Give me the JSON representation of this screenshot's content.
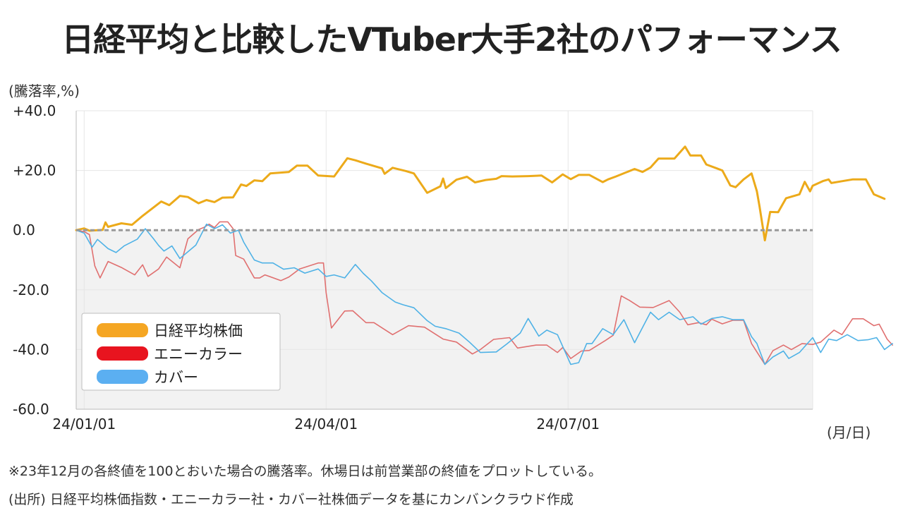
{
  "title": "日経平均と比較したVTuber大手2社のパフォーマンス",
  "y_unit": "(騰落率,%)",
  "x_unit": "(月/日)",
  "footnote": "※23年12月の各終値を100とおいた場合の騰落率。休場日は前営業部の終値をプロットしている。",
  "source": "(出所) 日経平均株価指数・エニーカラー社・カバー社株価データを基にカンバンクラウド作成",
  "chart_data": {
    "type": "line",
    "ylim": [
      -60,
      40
    ],
    "y_ticks": [
      {
        "value": 40,
        "label": "+40.0"
      },
      {
        "value": 20,
        "label": "+20.0"
      },
      {
        "value": 0,
        "label": "0.0"
      },
      {
        "value": -20,
        "label": "-20.0"
      },
      {
        "value": -40,
        "label": "-40.0"
      },
      {
        "value": -60,
        "label": "-60.0"
      }
    ],
    "x_ticks": [
      {
        "value": "2024-01-01",
        "label": "24/01/01"
      },
      {
        "value": "2024-04-01",
        "label": "24/04/01"
      },
      {
        "value": "2024-07-01",
        "label": "24/07/01"
      }
    ],
    "x_start": "2023-12-29",
    "x_end": "2024-10-01",
    "grid": true,
    "negative_region_shaded": true,
    "zero_line_dashed": true,
    "legend_position": "bottom-left",
    "series": [
      {
        "name": "日経平均株価",
        "color": "#ecaa1a",
        "legend_color": "#f5a623",
        "points": [
          [
            "2023-12-29",
            0.0
          ],
          [
            "2024-01-01",
            0.6
          ],
          [
            "2024-01-03",
            -0.2
          ],
          [
            "2024-01-08",
            0.1
          ],
          [
            "2024-01-09",
            2.6
          ],
          [
            "2024-01-10",
            1.1
          ],
          [
            "2024-01-15",
            2.3
          ],
          [
            "2024-01-19",
            1.8
          ],
          [
            "2024-01-23",
            4.8
          ],
          [
            "2024-01-30",
            9.6
          ],
          [
            "2024-02-02",
            8.4
          ],
          [
            "2024-02-06",
            11.5
          ],
          [
            "2024-02-09",
            11.1
          ],
          [
            "2024-02-13",
            9.0
          ],
          [
            "2024-02-16",
            10.1
          ],
          [
            "2024-02-19",
            9.4
          ],
          [
            "2024-02-22",
            10.9
          ],
          [
            "2024-02-26",
            11.0
          ],
          [
            "2024-02-29",
            15.3
          ],
          [
            "2024-03-02",
            14.8
          ],
          [
            "2024-03-05",
            16.7
          ],
          [
            "2024-03-08",
            16.4
          ],
          [
            "2024-03-11",
            19.0
          ],
          [
            "2024-03-15",
            19.3
          ],
          [
            "2024-03-18",
            19.5
          ],
          [
            "2024-03-21",
            21.6
          ],
          [
            "2024-03-25",
            21.6
          ],
          [
            "2024-03-29",
            18.3
          ],
          [
            "2024-04-04",
            18.0
          ],
          [
            "2024-04-09",
            24.1
          ],
          [
            "2024-04-12",
            23.4
          ],
          [
            "2024-04-16",
            22.3
          ],
          [
            "2024-04-22",
            20.7
          ],
          [
            "2024-04-23",
            18.9
          ],
          [
            "2024-04-26",
            20.9
          ],
          [
            "2024-05-01",
            19.8
          ],
          [
            "2024-05-04",
            19.0
          ],
          [
            "2024-05-09",
            12.5
          ],
          [
            "2024-05-14",
            14.7
          ],
          [
            "2024-05-15",
            17.3
          ],
          [
            "2024-05-16",
            14.1
          ],
          [
            "2024-05-20",
            16.9
          ],
          [
            "2024-05-24",
            17.9
          ],
          [
            "2024-05-27",
            16.0
          ],
          [
            "2024-05-31",
            16.8
          ],
          [
            "2024-06-04",
            17.2
          ],
          [
            "2024-06-06",
            18.1
          ],
          [
            "2024-06-10",
            18.0
          ],
          [
            "2024-06-16",
            18.1
          ],
          [
            "2024-06-21",
            18.3
          ],
          [
            "2024-06-25",
            16.0
          ],
          [
            "2024-06-29",
            18.7
          ],
          [
            "2024-07-02",
            17.1
          ],
          [
            "2024-07-05",
            18.5
          ],
          [
            "2024-07-09",
            18.5
          ],
          [
            "2024-07-14",
            16.1
          ],
          [
            "2024-07-16",
            17.0
          ],
          [
            "2024-07-19",
            18.0
          ],
          [
            "2024-07-26",
            20.5
          ],
          [
            "2024-07-29",
            19.5
          ],
          [
            "2024-08-01",
            21.0
          ],
          [
            "2024-08-04",
            24.0
          ],
          [
            "2024-08-10",
            24.0
          ],
          [
            "2024-08-14",
            28.0
          ],
          [
            "2024-08-16",
            25.0
          ],
          [
            "2024-08-20",
            25.0
          ],
          [
            "2024-08-22",
            22.0
          ],
          [
            "2024-08-28",
            20.0
          ],
          [
            "2024-08-31",
            15.0
          ],
          [
            "2024-09-02",
            14.4
          ],
          [
            "2024-09-05",
            17.0
          ],
          [
            "2024-09-08",
            19.0
          ],
          [
            "2024-09-10",
            13.0
          ],
          [
            "2024-09-11",
            8.0
          ],
          [
            "2024-09-13",
            -3.4
          ],
          [
            "2024-09-15",
            6.1
          ],
          [
            "2024-09-18",
            6.0
          ],
          [
            "2024-09-21",
            10.7
          ],
          [
            "2024-09-26",
            12.0
          ],
          [
            "2024-09-28",
            16.2
          ],
          [
            "2024-09-30",
            13.0
          ],
          [
            "2024-10-01",
            14.9
          ],
          [
            "2024-10-05",
            16.5
          ],
          [
            "2024-10-07",
            17.0
          ],
          [
            "2024-10-08",
            15.8
          ],
          [
            "2024-10-12",
            16.4
          ],
          [
            "2024-10-16",
            17.0
          ],
          [
            "2024-10-21",
            17.0
          ],
          [
            "2024-10-24",
            12.0
          ],
          [
            "2024-10-28",
            10.5
          ]
        ]
      },
      {
        "name": "エニーカラー",
        "color": "#e07070",
        "legend_color": "#e8141f",
        "points": [
          [
            "2023-12-29",
            0.0
          ],
          [
            "2024-01-01",
            -0.5
          ],
          [
            "2024-01-03",
            -1.5
          ],
          [
            "2024-01-05",
            -12.0
          ],
          [
            "2024-01-07",
            -16.0
          ],
          [
            "2024-01-10",
            -10.5
          ],
          [
            "2024-01-15",
            -12.5
          ],
          [
            "2024-01-20",
            -15.0
          ],
          [
            "2024-01-23",
            -11.6
          ],
          [
            "2024-01-25",
            -15.5
          ],
          [
            "2024-01-29",
            -13.0
          ],
          [
            "2024-02-01",
            -9.0
          ],
          [
            "2024-02-06",
            -12.6
          ],
          [
            "2024-02-09",
            -2.9
          ],
          [
            "2024-02-13",
            0.2
          ],
          [
            "2024-02-15",
            0.9
          ],
          [
            "2024-02-17",
            2.0
          ],
          [
            "2024-02-19",
            0.9
          ],
          [
            "2024-02-21",
            2.8
          ],
          [
            "2024-02-24",
            2.8
          ],
          [
            "2024-02-26",
            0.5
          ],
          [
            "2024-02-27",
            -8.5
          ],
          [
            "2024-03-01",
            -9.7
          ],
          [
            "2024-03-05",
            -16.0
          ],
          [
            "2024-03-07",
            -16.0
          ],
          [
            "2024-03-09",
            -15.0
          ],
          [
            "2024-03-15",
            -16.9
          ],
          [
            "2024-03-18",
            -15.7
          ],
          [
            "2024-03-22",
            -13.0
          ],
          [
            "2024-03-29",
            -11.0
          ],
          [
            "2024-03-31",
            -11.0
          ],
          [
            "2024-04-01",
            -21.0
          ],
          [
            "2024-04-03",
            -32.8
          ],
          [
            "2024-04-08",
            -27.1
          ],
          [
            "2024-04-11",
            -27.0
          ],
          [
            "2024-04-16",
            -31.0
          ],
          [
            "2024-04-19",
            -31.0
          ],
          [
            "2024-04-26",
            -35.0
          ],
          [
            "2024-05-02",
            -32.0
          ],
          [
            "2024-05-08",
            -32.5
          ],
          [
            "2024-05-15",
            -36.5
          ],
          [
            "2024-05-20",
            -37.5
          ],
          [
            "2024-05-26",
            -41.5
          ],
          [
            "2024-05-29",
            -40.0
          ],
          [
            "2024-06-03",
            -36.6
          ],
          [
            "2024-06-09",
            -36.0
          ],
          [
            "2024-06-12",
            -39.5
          ],
          [
            "2024-06-19",
            -38.5
          ],
          [
            "2024-06-23",
            -38.5
          ],
          [
            "2024-06-27",
            -41.0
          ],
          [
            "2024-06-29",
            -39.3
          ],
          [
            "2024-07-02",
            -43.0
          ],
          [
            "2024-07-06",
            -40.5
          ],
          [
            "2024-07-09",
            -40.3
          ],
          [
            "2024-07-15",
            -37.0
          ],
          [
            "2024-07-18",
            -35.2
          ],
          [
            "2024-07-21",
            -22.0
          ],
          [
            "2024-07-24",
            -23.5
          ],
          [
            "2024-07-28",
            -25.8
          ],
          [
            "2024-08-02",
            -25.9
          ],
          [
            "2024-08-08",
            -23.6
          ],
          [
            "2024-08-12",
            -27.5
          ],
          [
            "2024-08-15",
            -31.7
          ],
          [
            "2024-08-19",
            -31.0
          ],
          [
            "2024-08-22",
            -31.7
          ],
          [
            "2024-08-24",
            -29.8
          ],
          [
            "2024-08-28",
            -31.4
          ],
          [
            "2024-09-01",
            -30.2
          ],
          [
            "2024-09-05",
            -30.2
          ],
          [
            "2024-09-08",
            -38.0
          ],
          [
            "2024-09-13",
            -45.0
          ],
          [
            "2024-09-16",
            -40.4
          ],
          [
            "2024-09-20",
            -38.5
          ],
          [
            "2024-09-23",
            -40.0
          ],
          [
            "2024-09-27",
            -38.0
          ],
          [
            "2024-10-01",
            -38.3
          ],
          [
            "2024-10-04",
            -37.5
          ],
          [
            "2024-10-09",
            -33.5
          ],
          [
            "2024-10-12",
            -35.0
          ],
          [
            "2024-10-16",
            -29.7
          ],
          [
            "2024-10-20",
            -29.7
          ],
          [
            "2024-10-24",
            -32.0
          ],
          [
            "2024-10-26",
            -31.5
          ],
          [
            "2024-10-29",
            -36.5
          ],
          [
            "2024-10-31",
            -38.5
          ]
        ]
      },
      {
        "name": "カバー",
        "color": "#4fb2e6",
        "legend_color": "#5baff1",
        "points": [
          [
            "2023-12-29",
            0.0
          ],
          [
            "2024-01-01",
            -1.0
          ],
          [
            "2024-01-04",
            -5.7
          ],
          [
            "2024-01-06",
            -3.1
          ],
          [
            "2024-01-10",
            -6.2
          ],
          [
            "2024-01-13",
            -7.5
          ],
          [
            "2024-01-16",
            -5.3
          ],
          [
            "2024-01-21",
            -3.0
          ],
          [
            "2024-01-24",
            0.5
          ],
          [
            "2024-01-27",
            -2.8
          ],
          [
            "2024-01-29",
            -5.1
          ],
          [
            "2024-01-31",
            -7.0
          ],
          [
            "2024-02-03",
            -5.3
          ],
          [
            "2024-02-06",
            -9.5
          ],
          [
            "2024-02-12",
            -5.0
          ],
          [
            "2024-02-16",
            2.0
          ],
          [
            "2024-02-19",
            0.5
          ],
          [
            "2024-02-22",
            1.8
          ],
          [
            "2024-02-25",
            -1.0
          ],
          [
            "2024-02-28",
            0.0
          ],
          [
            "2024-03-01",
            -4.0
          ],
          [
            "2024-03-05",
            -10.0
          ],
          [
            "2024-03-08",
            -11.0
          ],
          [
            "2024-03-12",
            -11.0
          ],
          [
            "2024-03-16",
            -13.1
          ],
          [
            "2024-03-20",
            -12.6
          ],
          [
            "2024-03-24",
            -14.4
          ],
          [
            "2024-03-29",
            -13.0
          ],
          [
            "2024-04-01",
            -15.5
          ],
          [
            "2024-04-04",
            -15.0
          ],
          [
            "2024-04-08",
            -16.0
          ],
          [
            "2024-04-12",
            -11.5
          ],
          [
            "2024-04-15",
            -14.5
          ],
          [
            "2024-04-18",
            -17.0
          ],
          [
            "2024-04-22",
            -20.9
          ],
          [
            "2024-04-27",
            -24.1
          ],
          [
            "2024-04-30",
            -25.0
          ],
          [
            "2024-05-04",
            -26.0
          ],
          [
            "2024-05-09",
            -30.3
          ],
          [
            "2024-05-12",
            -32.2
          ],
          [
            "2024-05-16",
            -33.0
          ],
          [
            "2024-05-21",
            -34.5
          ],
          [
            "2024-05-25",
            -37.6
          ],
          [
            "2024-05-29",
            -41.0
          ],
          [
            "2024-06-04",
            -40.8
          ],
          [
            "2024-06-08",
            -38.1
          ],
          [
            "2024-06-13",
            -34.5
          ],
          [
            "2024-06-16",
            -29.6
          ],
          [
            "2024-06-20",
            -35.5
          ],
          [
            "2024-06-23",
            -33.5
          ],
          [
            "2024-06-27",
            -35.0
          ],
          [
            "2024-07-02",
            -45.0
          ],
          [
            "2024-07-05",
            -44.4
          ],
          [
            "2024-07-08",
            -38.0
          ],
          [
            "2024-07-10",
            -38.0
          ],
          [
            "2024-07-14",
            -33.0
          ],
          [
            "2024-07-18",
            -35.0
          ],
          [
            "2024-07-22",
            -30.0
          ],
          [
            "2024-07-26",
            -37.7
          ],
          [
            "2024-08-01",
            -27.5
          ],
          [
            "2024-08-04",
            -30.0
          ],
          [
            "2024-08-08",
            -27.5
          ],
          [
            "2024-08-12",
            -30.0
          ],
          [
            "2024-08-17",
            -29.0
          ],
          [
            "2024-08-20",
            -31.5
          ],
          [
            "2024-08-24",
            -29.6
          ],
          [
            "2024-08-28",
            -29.0
          ],
          [
            "2024-09-01",
            -30.0
          ],
          [
            "2024-09-05",
            -30.0
          ],
          [
            "2024-09-08",
            -35.7
          ],
          [
            "2024-09-10",
            -38.0
          ],
          [
            "2024-09-13",
            -45.0
          ],
          [
            "2024-09-16",
            -42.5
          ],
          [
            "2024-09-20",
            -40.5
          ],
          [
            "2024-09-22",
            -43.0
          ],
          [
            "2024-09-26",
            -41.0
          ],
          [
            "2024-10-01",
            -36.0
          ],
          [
            "2024-10-04",
            -41.0
          ],
          [
            "2024-10-07",
            -36.5
          ],
          [
            "2024-10-10",
            -37.0
          ],
          [
            "2024-10-14",
            -35.0
          ],
          [
            "2024-10-18",
            -37.0
          ],
          [
            "2024-10-22",
            -36.7
          ],
          [
            "2024-10-25",
            -36.0
          ],
          [
            "2024-10-28",
            -40.0
          ],
          [
            "2024-10-31",
            -38.0
          ]
        ]
      }
    ],
    "chart_annotations": {
      "negative_fill": "#f2f2f2",
      "grid_color": "#e6e6e6",
      "zero_line_color": "#999999",
      "axis_color": "#bbbbbb"
    }
  }
}
